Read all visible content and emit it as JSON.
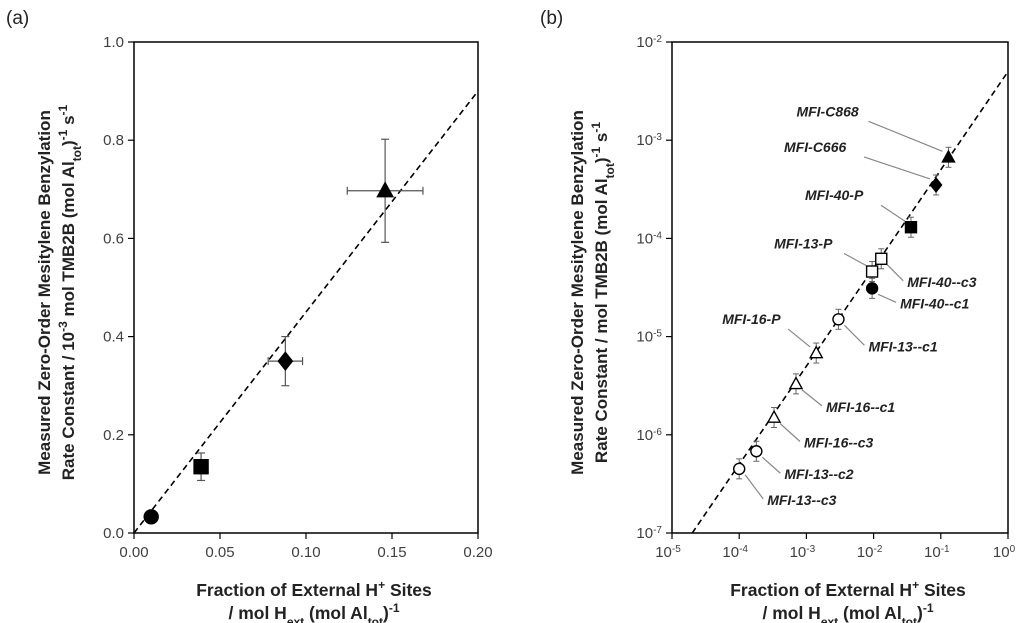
{
  "chart_data": [
    {
      "panel_label": "(a)",
      "type": "scatter",
      "xlabel_line1": "Fraction of External H⁺ Sites",
      "xlabel_line2": "/ mol H_ext (mol Al_tot)⁻¹",
      "ylabel_line1": "Measured Zero-Order Mesitylene Benzylation",
      "ylabel_line2": "Rate Constant / 10⁻³ mol TMB2B (mol Al_tot)⁻¹ s⁻¹",
      "xlim": [
        0,
        0.2
      ],
      "ylim": [
        0,
        1.0
      ],
      "xticks": [
        "0.00",
        "0.05",
        "0.10",
        "0.15",
        "0.20"
      ],
      "yticks": [
        "0.0",
        "0.2",
        "0.4",
        "0.6",
        "0.8",
        "1.0"
      ],
      "fit_line": {
        "x": [
          0,
          0.2
        ],
        "y": [
          0,
          0.9
        ],
        "style": "dashed"
      },
      "points": [
        {
          "marker": "circle",
          "x": 0.01,
          "y": 0.033,
          "xerr": 0.002,
          "yerr": 0.0
        },
        {
          "marker": "square",
          "x": 0.039,
          "y": 0.135,
          "xerr": 0.004,
          "yerr": 0.028
        },
        {
          "marker": "diamond",
          "x": 0.088,
          "y": 0.35,
          "xerr": 0.01,
          "yerr": 0.05
        },
        {
          "marker": "triangle",
          "x": 0.146,
          "y": 0.697,
          "xerr": 0.022,
          "yerr": 0.105
        }
      ]
    },
    {
      "panel_label": "(b)",
      "type": "scatter",
      "xscale": "log",
      "yscale": "log",
      "xlabel_line1": "Fraction of External H⁺ Sites",
      "xlabel_line2": "/ mol H_ext (mol Al_tot)⁻¹",
      "ylabel_line1": "Measured Zero-Order Mesitylene Benzylation",
      "ylabel_line2": "Rate Constant / mol TMB2B (mol Al_tot)⁻¹ s⁻¹",
      "xlim_exp": [
        -5,
        0
      ],
      "ylim_exp": [
        -7,
        -2
      ],
      "xtick_exps": [
        "-5",
        "-4",
        "-3",
        "-2",
        "-1",
        "0"
      ],
      "ytick_exps": [
        "-7",
        "-6",
        "-5",
        "-4",
        "-3",
        "-2"
      ],
      "fit_line": {
        "x": [
          2e-05,
          1
        ],
        "y": [
          1e-07,
          0.005
        ],
        "style": "dashed"
      },
      "points": [
        {
          "label": "MFI-C868",
          "marker": "triangle",
          "fill": "black",
          "x": 0.13,
          "y": 0.00067
        },
        {
          "label": "MFI-C666",
          "marker": "diamond",
          "fill": "black",
          "x": 0.085,
          "y": 0.00035
        },
        {
          "label": "MFI-40-P",
          "marker": "square",
          "fill": "black",
          "x": 0.036,
          "y": 0.00013
        },
        {
          "label": "MFI-40--c3",
          "marker": "square",
          "fill": "white",
          "x": 0.013,
          "y": 6.2e-05
        },
        {
          "label": "MFI-13-P",
          "marker": "square",
          "fill": "white",
          "x": 0.0095,
          "y": 4.6e-05
        },
        {
          "label": "MFI-40--c1",
          "marker": "circle",
          "fill": "black",
          "x": 0.0095,
          "y": 3.1e-05
        },
        {
          "label": "MFI-13--c1",
          "marker": "circle",
          "fill": "white",
          "x": 0.003,
          "y": 1.5e-05
        },
        {
          "label": "MFI-16-P",
          "marker": "triangle",
          "fill": "white",
          "x": 0.0014,
          "y": 6.8e-06
        },
        {
          "label": "MFI-16--c1",
          "marker": "triangle",
          "fill": "white",
          "x": 0.0007,
          "y": 3.3e-06
        },
        {
          "label": "MFI-16--c3",
          "marker": "triangle",
          "fill": "white",
          "x": 0.00033,
          "y": 1.5e-06
        },
        {
          "label": "MFI-13--c2",
          "marker": "circle",
          "fill": "white",
          "x": 0.00018,
          "y": 6.8e-07
        },
        {
          "label": "MFI-13--c3",
          "marker": "circle",
          "fill": "white",
          "x": 0.0001,
          "y": 4.5e-07
        }
      ]
    }
  ]
}
